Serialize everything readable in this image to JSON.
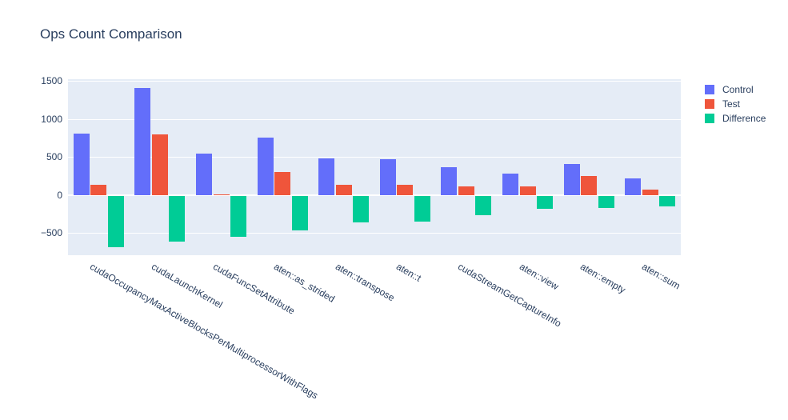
{
  "chart_data": {
    "type": "bar",
    "title": "Ops Count Comparison",
    "xlabel": "",
    "ylabel": "",
    "categories": [
      "cudaOccupancyMaxActiveBlocksPerMultiprocessorWithFlags",
      "cudaLaunchKernel",
      "cudaFuncSetAttribute",
      "aten::as_strided",
      "aten::transpose",
      "aten::t",
      "cudaStreamGetCaptureInfo",
      "aten::view",
      "aten::empty",
      "aten::sum"
    ],
    "series": [
      {
        "name": "Control",
        "color": "#636EFA",
        "values": [
          805,
          1400,
          540,
          755,
          485,
          475,
          365,
          280,
          410,
          215
        ]
      },
      {
        "name": "Test",
        "color": "#EF553B",
        "values": [
          135,
          800,
          0,
          300,
          135,
          135,
          115,
          110,
          245,
          75
        ]
      },
      {
        "name": "Difference",
        "color": "#00CC96",
        "values": [
          -670,
          -600,
          -540,
          -455,
          -350,
          -340,
          -250,
          -170,
          -165,
          -140
        ]
      }
    ],
    "yticks": [
      -500,
      0,
      500,
      1000,
      1500
    ],
    "ylim": [
      -790,
      1520
    ],
    "grid": true,
    "legend_position": "top-right",
    "xtick_angle": 30,
    "colors": {
      "plot_bg": "#E5ECF6",
      "paper_bg": "#ffffff",
      "gridline": "#ffffff",
      "text": "#2a3f5f"
    }
  }
}
